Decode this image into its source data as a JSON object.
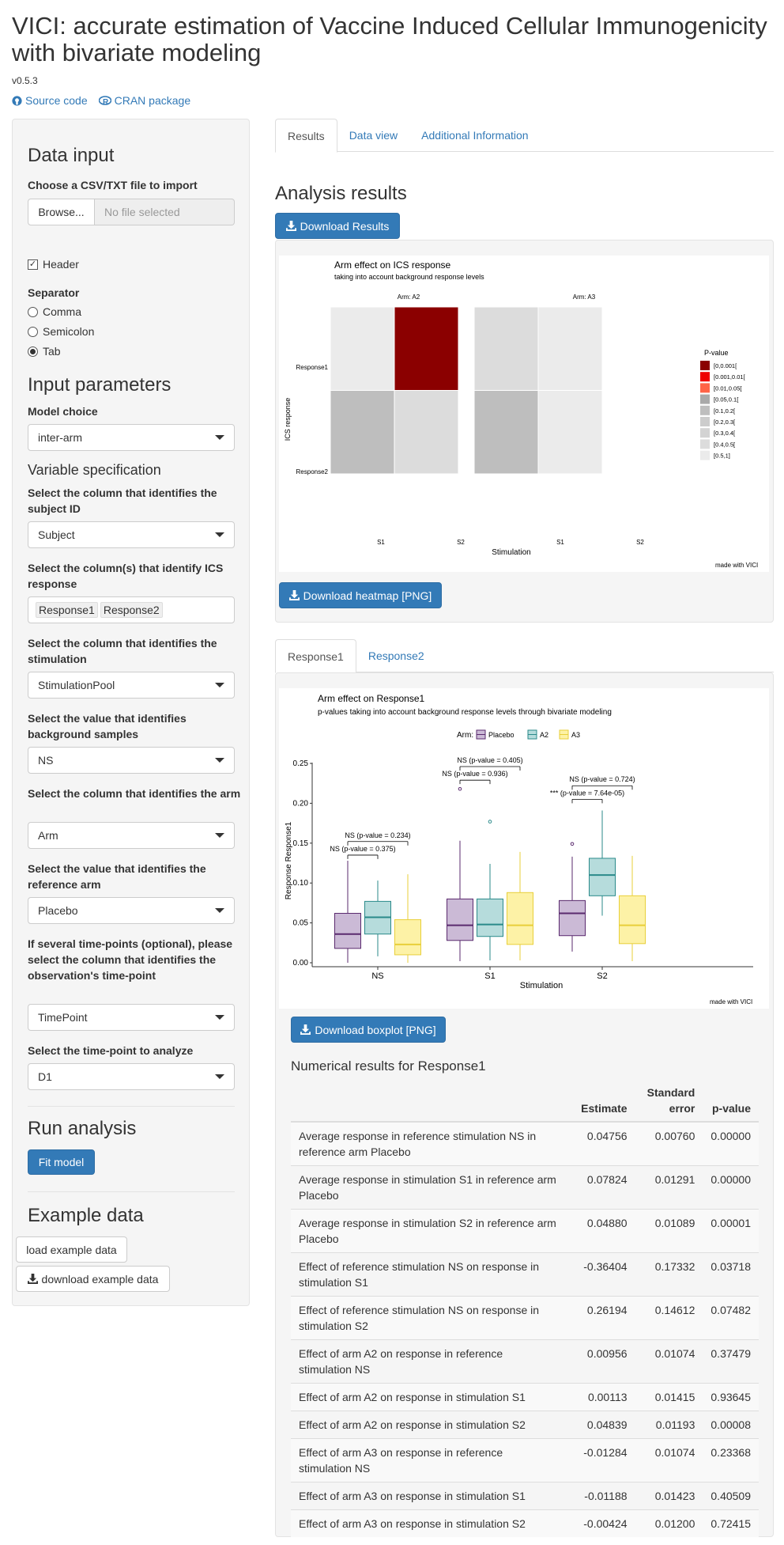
{
  "app": {
    "title": "VICI: accurate estimation of Vaccine Induced Cellular Immunogenicity with bivariate modeling",
    "version": "v0.5.3",
    "link_source": "Source code",
    "link_cran": "CRAN package"
  },
  "sidebar": {
    "data_input_title": "Data input",
    "file_label": "Choose a CSV/TXT file to import",
    "browse": "Browse...",
    "file_placeholder": "No file selected",
    "header_label": "Header",
    "header_checked": true,
    "separator_label": "Separator",
    "separators": [
      "Comma",
      "Semicolon",
      "Tab"
    ],
    "separator_selected": "Tab",
    "input_params_title": "Input parameters",
    "model_label": "Model choice",
    "model_value": "inter-arm",
    "var_spec_title": "Variable specification",
    "subject_label": "Select the column that identifies the subject ID",
    "subject_value": "Subject",
    "ics_label": "Select the column(s) that identify ICS response",
    "ics_values": [
      "Response1",
      "Response2"
    ],
    "stim_label": "Select the column that identifies the stimulation",
    "stim_value": "StimulationPool",
    "bg_label": "Select the value that identifies background samples",
    "bg_value": "NS",
    "arm_label": "Select the column that identifies the arm",
    "arm_value": "Arm",
    "ref_label": "Select the value that identifies the reference arm",
    "ref_value": "Placebo",
    "tp_label": "If several time-points (optional), please select the column that identifies the observation's time-point",
    "tp_value": "TimePoint",
    "tpa_label": "Select the time-point to analyze",
    "tpa_value": "D1",
    "run_title": "Run analysis",
    "fit_button": "Fit model",
    "example_title": "Example data",
    "load_example": "load example data",
    "download_example": "download example data"
  },
  "main": {
    "tabs": [
      "Results",
      "Data view",
      "Additional Information"
    ],
    "active_tab": "Results",
    "analysis_title": "Analysis results",
    "download_results": "Download Results",
    "download_heatmap": "Download heatmap [PNG]",
    "response_tabs": [
      "Response1",
      "Response2"
    ],
    "active_response_tab": "Response1",
    "download_boxplot": "Download boxplot [PNG]",
    "numerical_title": "Numerical results for Response1"
  },
  "heatmap": {
    "title": "Arm effect on ICS response",
    "subtitle": "taking into account background response levels",
    "panels": [
      "Arm: A2",
      "Arm: A3"
    ],
    "rows": [
      "Response1",
      "Response2"
    ],
    "cols": [
      "S1",
      "S2"
    ],
    "ylabel": "ICS response",
    "xlabel": "Stimulation",
    "legend_title": "P-value",
    "legend": [
      {
        "label": "[0,0.001[",
        "color": "#8b0000"
      },
      {
        "label": "[0.001,0.01[",
        "color": "#ee0000"
      },
      {
        "label": "[0.01,0.05[",
        "color": "#ff6347"
      },
      {
        "label": "[0.05,0.1[",
        "color": "#a9a9a9"
      },
      {
        "label": "[0.1,0.2[",
        "color": "#bebebe"
      },
      {
        "label": "[0.2,0.3[",
        "color": "#cccccc"
      },
      {
        "label": "[0.3,0.4[",
        "color": "#d3d3d3"
      },
      {
        "label": "[0.4,0.5[",
        "color": "#dcdcdc"
      },
      {
        "label": "[0.5,1]",
        "color": "#ebebeb"
      }
    ],
    "cells": [
      {
        "arm": "A2",
        "response": "Response1",
        "stim": "S1",
        "pvalue_class": "[0.5,1]"
      },
      {
        "arm": "A2",
        "response": "Response1",
        "stim": "S2",
        "pvalue_class": "[0,0.001["
      },
      {
        "arm": "A2",
        "response": "Response2",
        "stim": "S1",
        "pvalue_class": "[0.1,0.2["
      },
      {
        "arm": "A2",
        "response": "Response2",
        "stim": "S2",
        "pvalue_class": "[0.4,0.5["
      },
      {
        "arm": "A3",
        "response": "Response1",
        "stim": "S1",
        "pvalue_class": "[0.4,0.5["
      },
      {
        "arm": "A3",
        "response": "Response1",
        "stim": "S2",
        "pvalue_class": "[0.5,1]"
      },
      {
        "arm": "A3",
        "response": "Response2",
        "stim": "S1",
        "pvalue_class": "[0.1,0.2["
      },
      {
        "arm": "A3",
        "response": "Response2",
        "stim": "S2",
        "pvalue_class": "[0.5,1]"
      }
    ],
    "credit": "made with VICI"
  },
  "chart_data": {
    "type": "boxplot",
    "title": "Arm effect on Response1",
    "subtitle": "p-values taking into account background response levels through bivariate modeling",
    "legend_title": "Arm:",
    "legend_position": "top",
    "xlabel": "Stimulation",
    "ylabel": "Response Response1",
    "categories": [
      "NS",
      "S1",
      "S2"
    ],
    "ylim": [
      0,
      0.25
    ],
    "yticks": [
      "0.00",
      "0.05",
      "0.10",
      "0.15",
      "0.20",
      "0.25"
    ],
    "series": [
      {
        "name": "Placebo",
        "fill": "#cbbad6",
        "stroke": "#5a2a6e",
        "boxes": [
          {
            "min": 0.0,
            "q1": 0.018,
            "median": 0.036,
            "q3": 0.062,
            "max": 0.128
          },
          {
            "min": 0.002,
            "q1": 0.028,
            "median": 0.047,
            "q3": 0.08,
            "max": 0.153
          },
          {
            "min": 0.014,
            "q1": 0.034,
            "median": 0.062,
            "q3": 0.078,
            "max": 0.133
          }
        ],
        "outliers": [
          [],
          [
            0.218
          ],
          [
            0.149
          ]
        ]
      },
      {
        "name": "A2",
        "fill": "#b6dcdc",
        "stroke": "#2a8a8a",
        "boxes": [
          {
            "min": 0.008,
            "q1": 0.036,
            "median": 0.057,
            "q3": 0.077,
            "max": 0.103
          },
          {
            "min": 0.003,
            "q1": 0.033,
            "median": 0.048,
            "q3": 0.08,
            "max": 0.124
          },
          {
            "min": 0.059,
            "q1": 0.084,
            "median": 0.11,
            "q3": 0.131,
            "max": 0.191
          }
        ],
        "outliers": [
          [],
          [
            0.177
          ],
          []
        ]
      },
      {
        "name": "A3",
        "fill": "#fdf2a6",
        "stroke": "#e8cf3a",
        "boxes": [
          {
            "min": 0.0,
            "q1": 0.01,
            "median": 0.023,
            "q3": 0.054,
            "max": 0.111
          },
          {
            "min": 0.003,
            "q1": 0.023,
            "median": 0.047,
            "q3": 0.088,
            "max": 0.139
          },
          {
            "min": 0.002,
            "q1": 0.024,
            "median": 0.047,
            "q3": 0.084,
            "max": 0.134
          }
        ],
        "outliers": [
          [],
          [],
          []
        ]
      }
    ],
    "annotations": [
      {
        "category": "NS",
        "compare": "A2",
        "text": "NS (p-value = 0.375)"
      },
      {
        "category": "NS",
        "compare": "A3",
        "text": "NS (p-value = 0.234)"
      },
      {
        "category": "S1",
        "compare": "A2",
        "text": "NS (p-value = 0.936)"
      },
      {
        "category": "S1",
        "compare": "A3",
        "text": "NS (p-value = 0.405)"
      },
      {
        "category": "S2",
        "compare": "A2",
        "text": "*** (p-value = 7.64e-05)"
      },
      {
        "category": "S2",
        "compare": "A3",
        "text": "NS (p-value = 0.724)"
      }
    ],
    "credit": "made with VICI"
  },
  "table": {
    "headers": [
      "",
      "Estimate",
      "Standard error",
      "p-value"
    ],
    "rows": [
      [
        "Average response in reference stimulation NS in reference arm Placebo",
        "0.04756",
        "0.00760",
        "0.00000"
      ],
      [
        "Average response in stimulation S1 in reference arm Placebo",
        "0.07824",
        "0.01291",
        "0.00000"
      ],
      [
        "Average response in stimulation S2 in reference arm Placebo",
        "0.04880",
        "0.01089",
        "0.00001"
      ],
      [
        "Effect of reference stimulation NS on response in stimulation S1",
        "-0.36404",
        "0.17332",
        "0.03718"
      ],
      [
        "Effect of reference stimulation NS on response in stimulation S2",
        "0.26194",
        "0.14612",
        "0.07482"
      ],
      [
        "Effect of arm A2 on response in reference stimulation NS",
        "0.00956",
        "0.01074",
        "0.37479"
      ],
      [
        "Effect of arm A2 on response in stimulation S1",
        "0.00113",
        "0.01415",
        "0.93645"
      ],
      [
        "Effect of arm A2 on response in stimulation S2",
        "0.04839",
        "0.01193",
        "0.00008"
      ],
      [
        "Effect of arm A3 on response in reference stimulation NS",
        "-0.01284",
        "0.01074",
        "0.23368"
      ],
      [
        "Effect of arm A3 on response in stimulation S1",
        "-0.01188",
        "0.01423",
        "0.40509"
      ],
      [
        "Effect of arm A3 on response in stimulation S2",
        "-0.00424",
        "0.01200",
        "0.72415"
      ]
    ]
  }
}
